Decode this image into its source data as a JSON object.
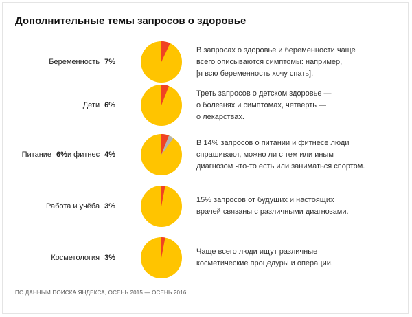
{
  "title": "Дополнительные темы запросов о здоровье",
  "footer": "ПО ДАННЫМ ПОИСКА ЯНДЕКСА, ОСЕНЬ 2015 — ОСЕНЬ 2016",
  "colors": {
    "base": "#ffc400",
    "highlight": "#f04223",
    "secondary": "#b3b3b3"
  },
  "chart_data": {
    "type": "pie",
    "rows": [
      {
        "label": "Беременность",
        "value_text": "7%",
        "slices": [
          {
            "share": 0.07,
            "color": "highlight"
          }
        ],
        "description": [
          "В запросах о здоровье и беременности чаще",
          "всего описываются симптомы: например,",
          "[я всю беременность хочу спать]."
        ]
      },
      {
        "label": "Дети",
        "value_text": "6%",
        "slices": [
          {
            "share": 0.06,
            "color": "highlight"
          }
        ],
        "description": [
          "Треть запросов о детском здоровье —",
          "о болезнях и симптомах, четверть —",
          "о лекарствах."
        ]
      },
      {
        "label": "Питание",
        "value_text": "6%",
        "label2": "и фитнес",
        "value_text2": "4%",
        "slices": [
          {
            "share": 0.06,
            "color": "highlight"
          },
          {
            "share": 0.04,
            "color": "secondary"
          }
        ],
        "description": [
          "В 14% запросов о питании и фитнесе люди",
          "спрашивают, можно ли с тем или иным",
          "диагнозом что-то есть или заниматься спортом."
        ]
      },
      {
        "label": "Работа и учёба",
        "value_text": "3%",
        "slices": [
          {
            "share": 0.03,
            "color": "highlight"
          }
        ],
        "description": [
          "15% запросов от будущих и настоящих",
          "врачей связаны с различными диагнозами."
        ]
      },
      {
        "label": "Косметология",
        "value_text": "3%",
        "slices": [
          {
            "share": 0.03,
            "color": "highlight"
          }
        ],
        "description": [
          "Чаще всего люди ищут различные",
          "косметические процедуры и операции."
        ]
      }
    ]
  }
}
